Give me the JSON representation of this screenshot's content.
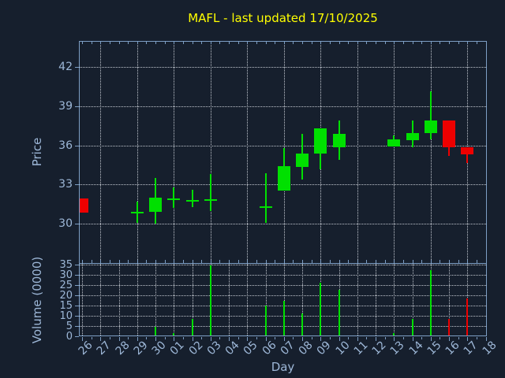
{
  "title": "MAFL - last updated 17/10/2025",
  "colors": {
    "background": "#161f2d",
    "spine": "#7d9ec4",
    "grid": "#c2c7cf",
    "tick_label": "#9db7d7",
    "title": "#ffff00",
    "up": "#00e000",
    "down": "#ee0000"
  },
  "axes": {
    "price_label": "Price",
    "volume_label": "Volume (0000)",
    "day_label": "Day"
  },
  "chart_data": [
    {
      "type": "candlestick",
      "title": "MAFL - last updated 17/10/2025",
      "xlabel": "Day",
      "ylabel": "Price",
      "ylim": [
        27,
        44
      ],
      "yticks": [
        30,
        33,
        36,
        39,
        42
      ],
      "grid": "dotted",
      "x_categories": [
        "26",
        "27",
        "28",
        "29",
        "30",
        "01",
        "02",
        "03",
        "04",
        "05",
        "06",
        "07",
        "08",
        "09",
        "10",
        "11",
        "12",
        "13",
        "14",
        "15",
        "16",
        "17",
        "18"
      ],
      "grid_x_categories": [
        "27",
        "29",
        "01",
        "03",
        "05",
        "07",
        "09",
        "11",
        "13",
        "15",
        "17"
      ],
      "ohlc": [
        {
          "day": "26",
          "open": 32.0,
          "high": 32.0,
          "low": 30.9,
          "close": 30.9
        },
        {
          "day": "29",
          "open": 30.95,
          "high": 31.75,
          "low": 30.15,
          "close": 30.95
        },
        {
          "day": "30",
          "open": 31.0,
          "high": 33.6,
          "low": 30.05,
          "close": 32.05
        },
        {
          "day": "01",
          "open": 32.0,
          "high": 32.85,
          "low": 31.25,
          "close": 32.0
        },
        {
          "day": "02",
          "open": 31.9,
          "high": 32.65,
          "low": 31.35,
          "close": 31.9
        },
        {
          "day": "03",
          "open": 31.95,
          "high": 33.85,
          "low": 31.05,
          "close": 31.95
        },
        {
          "day": "06",
          "open": 31.4,
          "high": 33.95,
          "low": 30.15,
          "close": 31.4
        },
        {
          "day": "07",
          "open": 32.6,
          "high": 35.85,
          "low": 32.6,
          "close": 34.45
        },
        {
          "day": "08",
          "open": 34.4,
          "high": 36.95,
          "low": 33.45,
          "close": 35.45
        },
        {
          "day": "09",
          "open": 35.45,
          "high": 37.35,
          "low": 34.25,
          "close": 37.35
        },
        {
          "day": "10",
          "open": 35.95,
          "high": 38.0,
          "low": 34.95,
          "close": 36.95
        },
        {
          "day": "13",
          "open": 36.0,
          "high": 36.8,
          "low": 36.0,
          "close": 36.5
        },
        {
          "day": "14",
          "open": 36.45,
          "high": 37.95,
          "low": 35.95,
          "close": 37.0
        },
        {
          "day": "15",
          "open": 37.0,
          "high": 40.2,
          "low": 36.55,
          "close": 38.0
        },
        {
          "day": "16",
          "open": 38.0,
          "high": 38.0,
          "low": 35.25,
          "close": 35.9
        },
        {
          "day": "17",
          "open": 35.9,
          "high": 35.9,
          "low": 34.7,
          "close": 35.4
        }
      ]
    },
    {
      "type": "bar",
      "ylabel": "Volume (0000)",
      "ylim": [
        0,
        35.7
      ],
      "yticks": [
        0,
        5,
        10,
        15,
        20,
        25,
        30,
        35
      ],
      "grid": "dotted",
      "values": [
        {
          "day": "30",
          "value": 5,
          "direction": "up"
        },
        {
          "day": "01",
          "value": 2,
          "direction": "up"
        },
        {
          "day": "02",
          "value": 9,
          "direction": "up"
        },
        {
          "day": "03",
          "value": 35,
          "direction": "up"
        },
        {
          "day": "06",
          "value": 15.5,
          "direction": "up"
        },
        {
          "day": "07",
          "value": 17.5,
          "direction": "up"
        },
        {
          "day": "08",
          "value": 11.5,
          "direction": "up"
        },
        {
          "day": "09",
          "value": 26.5,
          "direction": "up"
        },
        {
          "day": "10",
          "value": 23,
          "direction": "up"
        },
        {
          "day": "13",
          "value": 2,
          "direction": "up"
        },
        {
          "day": "14",
          "value": 9,
          "direction": "up"
        },
        {
          "day": "15",
          "value": 32.5,
          "direction": "up"
        },
        {
          "day": "16",
          "value": 9,
          "direction": "down"
        },
        {
          "day": "17",
          "value": 19,
          "direction": "down"
        }
      ]
    }
  ]
}
